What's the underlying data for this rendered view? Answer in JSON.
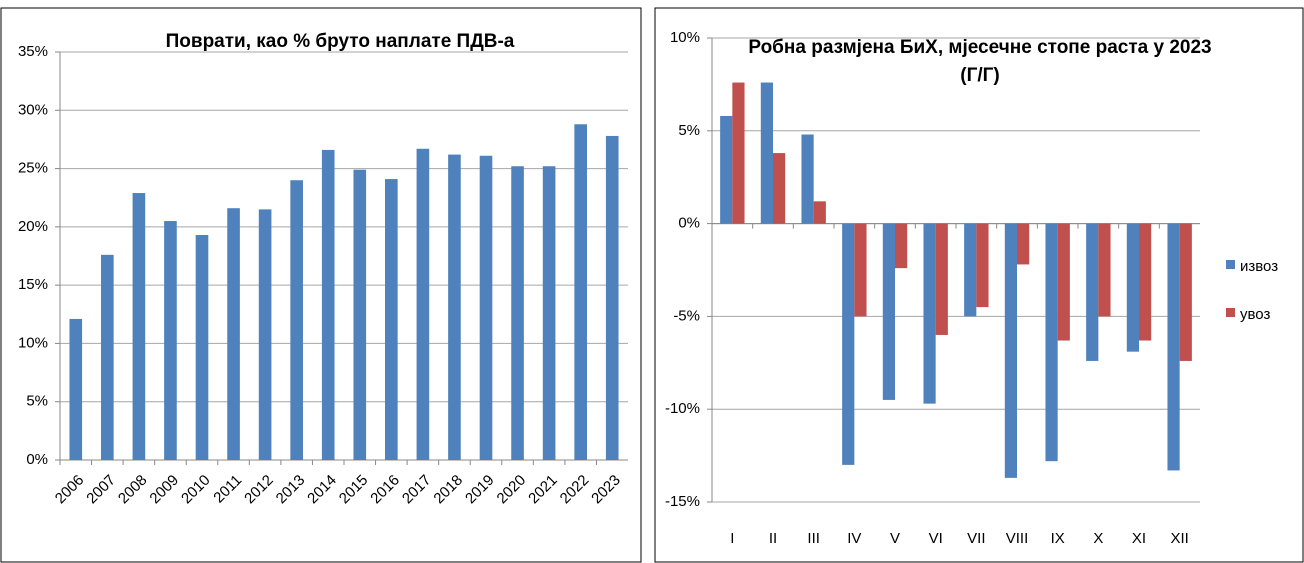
{
  "chart_data": [
    {
      "type": "bar",
      "title": "Поврати, као % бруто наплате ПДВ-а",
      "categories": [
        "2006",
        "2007",
        "2008",
        "2009",
        "2010",
        "2011",
        "2012",
        "2013",
        "2014",
        "2015",
        "2016",
        "2017",
        "2018",
        "2019",
        "2020",
        "2021",
        "2022",
        "2023"
      ],
      "values": [
        12.1,
        17.6,
        22.9,
        20.5,
        19.3,
        21.6,
        21.5,
        24.0,
        26.6,
        24.9,
        24.1,
        26.7,
        26.2,
        26.1,
        25.2,
        25.2,
        28.8,
        27.8
      ],
      "color": "#4f81bd",
      "ylim": [
        0,
        35
      ],
      "yticks": [
        {
          "value": 0,
          "label": "0%"
        },
        {
          "value": 5,
          "label": "5%"
        },
        {
          "value": 10,
          "label": "10%"
        },
        {
          "value": 15,
          "label": "15%"
        },
        {
          "value": 20,
          "label": "20%"
        },
        {
          "value": 25,
          "label": "25%"
        },
        {
          "value": 30,
          "label": "30%"
        },
        {
          "value": 35,
          "label": "35%"
        }
      ],
      "grid": true
    },
    {
      "type": "grouped_bar",
      "title": "Робна размјена БиХ,  мјесечне стопе раста у 2023 (Г/Г)",
      "categories": [
        "I",
        "II",
        "III",
        "IV",
        "V",
        "VI",
        "VII",
        "VIII",
        "IX",
        "X",
        "XI",
        "XII"
      ],
      "series": [
        {
          "name": "извоз",
          "color": "#4f81bd",
          "values": [
            5.8,
            7.6,
            4.8,
            -13.0,
            -9.5,
            -9.7,
            -5.0,
            -13.7,
            -12.8,
            -7.4,
            -6.9,
            -13.3
          ]
        },
        {
          "name": "увоз",
          "color": "#c0504d",
          "values": [
            7.6,
            3.8,
            1.2,
            -5.0,
            -2.4,
            -6.0,
            -4.5,
            -2.2,
            -6.3,
            -5.0,
            -6.3,
            -7.4
          ]
        }
      ],
      "ylim": [
        -15,
        10
      ],
      "yticks": [
        {
          "value": -15,
          "label": "-15%"
        },
        {
          "value": -10,
          "label": "-10%"
        },
        {
          "value": -5,
          "label": "-5%"
        },
        {
          "value": 0,
          "label": "0%"
        },
        {
          "value": 5,
          "label": "5%"
        },
        {
          "value": 10,
          "label": "10%"
        }
      ],
      "grid": true,
      "legend": "right"
    }
  ]
}
